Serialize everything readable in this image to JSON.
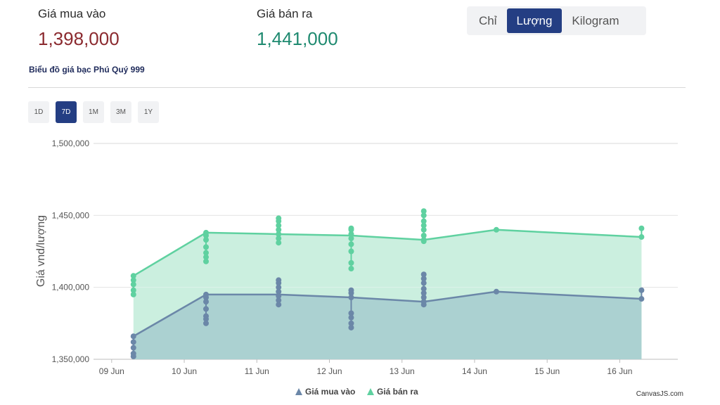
{
  "prices": {
    "buy_label": "Giá mua vào",
    "buy_value": "1,398,000",
    "sell_label": "Giá bán ra",
    "sell_value": "1,441,000"
  },
  "unit_tabs": [
    {
      "label": "Chỉ",
      "active": false
    },
    {
      "label": "Lượng",
      "active": true
    },
    {
      "label": "Kilogram",
      "active": false
    }
  ],
  "chart_title": "Biểu đồ giá bạc Phú Quý 999",
  "range_tabs": [
    {
      "label": "1D",
      "active": false
    },
    {
      "label": "7D",
      "active": true
    },
    {
      "label": "1M",
      "active": false
    },
    {
      "label": "3M",
      "active": false
    },
    {
      "label": "1Y",
      "active": false
    }
  ],
  "credit": "CanvasJS.com",
  "colors": {
    "buy": "#6b87a8",
    "buy_fill": "#a9cfd0",
    "sell": "#5fd1a0",
    "sell_fill": "#c8eedd",
    "accent": "#243e83"
  },
  "chart_data": {
    "type": "area",
    "title": "",
    "xlabel": "",
    "ylabel": "Giá vnd/lượng",
    "ylim": [
      1350000,
      1500000
    ],
    "yticks": [
      1350000,
      1400000,
      1450000,
      1500000
    ],
    "ytick_labels": [
      "1,350,000",
      "1,400,000",
      "1,450,000",
      "1,500,000"
    ],
    "xlim": [
      8.75,
      16.8
    ],
    "xticks": [
      9,
      10,
      11,
      12,
      13,
      14,
      15,
      16
    ],
    "xtick_labels": [
      "09 Jun",
      "10 Jun",
      "11 Jun",
      "12 Jun",
      "13 Jun",
      "14 Jun",
      "15 Jun",
      "16 Jun"
    ],
    "grid": true,
    "legend": "bottom-center",
    "series": [
      {
        "name": "Giá mua vào",
        "x": [
          9.3,
          10.3,
          11.3,
          12.3,
          13.3,
          14.3,
          16.3
        ],
        "values": [
          1366000,
          1395000,
          1395000,
          1393000,
          1390000,
          1397000,
          1392000
        ],
        "day_points": [
          [
            1366000,
            1362000,
            1358000,
            1354000,
            1352000
          ],
          [
            1378000,
            1375000,
            1380000,
            1385000,
            1390000,
            1393000,
            1395000
          ],
          [
            1388000,
            1391000,
            1394000,
            1397000,
            1400000,
            1403000,
            1405000
          ],
          [
            1382000,
            1372000,
            1375000,
            1379000,
            1393000,
            1396000,
            1398000
          ],
          [
            1390000,
            1388000,
            1393000,
            1396000,
            1399000,
            1403000,
            1406000,
            1409000
          ],
          [
            1397000
          ],
          [
            1392000,
            1398000
          ]
        ]
      },
      {
        "name": "Giá bán ra",
        "x": [
          9.3,
          10.3,
          11.3,
          12.3,
          13.3,
          14.3,
          16.3
        ],
        "values": [
          1408000,
          1438000,
          1437000,
          1436000,
          1433000,
          1440000,
          1435000
        ],
        "day_points": [
          [
            1408000,
            1405000,
            1402000,
            1398000,
            1395000
          ],
          [
            1421000,
            1418000,
            1424000,
            1428000,
            1433000,
            1436000,
            1438000
          ],
          [
            1431000,
            1434000,
            1437000,
            1440000,
            1443000,
            1446000,
            1448000
          ],
          [
            1425000,
            1413000,
            1417000,
            1430000,
            1434000,
            1437000,
            1440000,
            1441000
          ],
          [
            1433000,
            1432000,
            1436000,
            1440000,
            1443000,
            1446000,
            1450000,
            1453000
          ],
          [
            1440000
          ],
          [
            1435000,
            1441000
          ]
        ]
      }
    ]
  }
}
